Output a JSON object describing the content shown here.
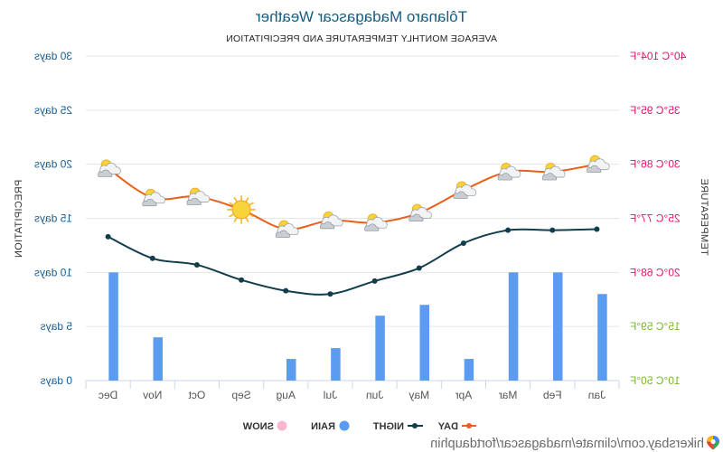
{
  "footer": {
    "link": "hikersbay.com/climate/madagascar/fortdauphin",
    "icon": "location-pin-icon"
  },
  "colors": {
    "title": "#135e82",
    "day": "#ea5f1b",
    "night": "#113d4d",
    "rain": "#5b9bf0",
    "snow": "#f7b7d0",
    "days_tick": "#1a5d8f",
    "warm_tick": "#e0156b",
    "cool_tick": "#77b72a",
    "grid": "#e6e6e6"
  },
  "chart_data": {
    "type": "line",
    "title": "Tôlanaro Madagascar Weather",
    "subtitle": "AVERAGE MONTHLY TEMPERATURE AND PRECIPITATION",
    "categories": [
      "Jan",
      "Feb",
      "Mar",
      "Apr",
      "May",
      "Jun",
      "Jul",
      "Aug",
      "Sep",
      "Oct",
      "Nov",
      "Dec"
    ],
    "y_temperature": {
      "label": "TEMPERATURE",
      "unit": "°C",
      "range": [
        10,
        40
      ],
      "ticks": [
        {
          "value": 10,
          "label": "10°C 50°F",
          "color": "#77b72a"
        },
        {
          "value": 15,
          "label": "15°C 59°F",
          "color": "#77b72a"
        },
        {
          "value": 20,
          "label": "20°C 68°F",
          "color": "#e0156b"
        },
        {
          "value": 25,
          "label": "25°C 77°F",
          "color": "#e0156b"
        },
        {
          "value": 30,
          "label": "30°C 86°F",
          "color": "#e0156b"
        },
        {
          "value": 35,
          "label": "35°C 95°F",
          "color": "#e0156b"
        },
        {
          "value": 40,
          "label": "40°C 104°F",
          "color": "#e0156b"
        }
      ]
    },
    "y_precipitation": {
      "label": "PRECIPITATION",
      "unit": "days",
      "range": [
        0,
        30
      ],
      "ticks": [
        {
          "value": 0,
          "label": "0 days"
        },
        {
          "value": 5,
          "label": "5 days"
        },
        {
          "value": 10,
          "label": "10 days"
        },
        {
          "value": 15,
          "label": "15 days"
        },
        {
          "value": 20,
          "label": "20 days"
        },
        {
          "value": 25,
          "label": "25 days"
        },
        {
          "value": 30,
          "label": "30 days"
        }
      ]
    },
    "series": [
      {
        "name": "DAY",
        "type": "line",
        "axis": "temperature",
        "color": "#ea5f1b",
        "values": [
          30.0,
          29.3,
          29.3,
          27.6,
          25.5,
          24.6,
          24.8,
          24.0,
          25.8,
          27.0,
          26.9,
          29.6
        ],
        "icons": [
          "sun-cloud",
          "sun-cloud",
          "sun-cloud",
          "sun-cloud",
          "sun-cloud",
          "sun-cloud",
          "sun-cloud",
          "sun-cloud",
          "sun",
          "sun-cloud",
          "sun-cloud",
          "sun-cloud"
        ]
      },
      {
        "name": "NIGHT",
        "type": "line",
        "axis": "temperature",
        "color": "#113d4d",
        "values": [
          24.0,
          23.9,
          23.9,
          22.7,
          20.4,
          19.2,
          18.0,
          18.3,
          19.3,
          20.7,
          21.3,
          23.3
        ]
      },
      {
        "name": "RAIN",
        "type": "bar",
        "axis": "precipitation",
        "color": "#5b9bf0",
        "values": [
          8,
          10,
          10,
          2,
          7,
          6,
          3,
          2,
          0,
          0,
          4,
          10
        ]
      },
      {
        "name": "SNOW",
        "type": "bar",
        "axis": "precipitation",
        "color": "#f7b7d0",
        "values": [
          0,
          0,
          0,
          0,
          0,
          0,
          0,
          0,
          0,
          0,
          0,
          0
        ]
      }
    ],
    "grid": true,
    "legend": "bottom-center"
  }
}
